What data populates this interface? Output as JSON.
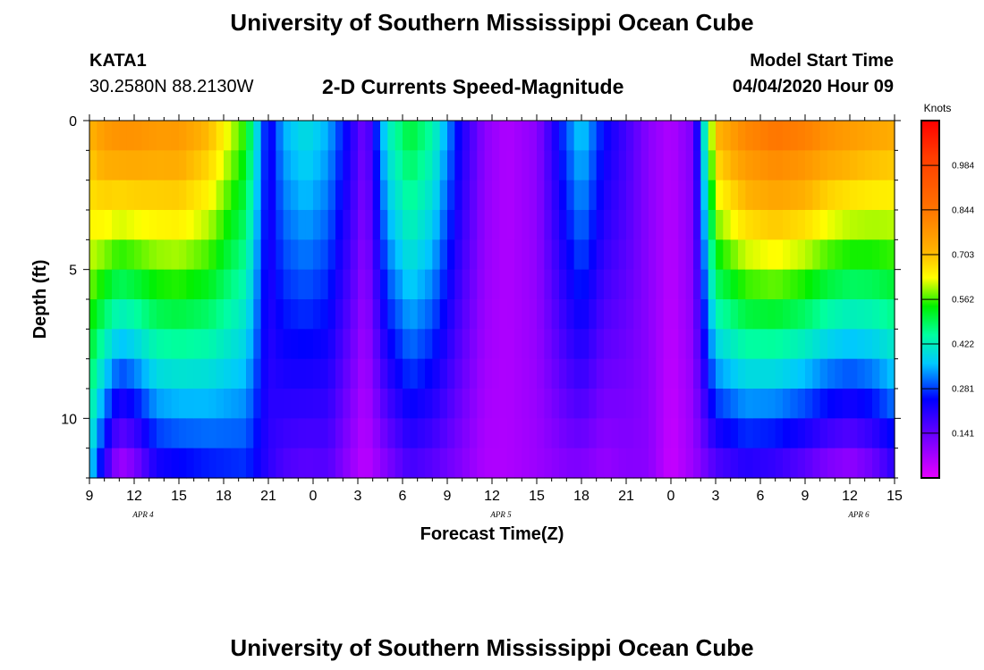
{
  "header": {
    "title": "University of Southern Mississippi Ocean Cube",
    "station": "KATA1",
    "coordinates": "30.2580N 88.2130W",
    "subtitle": "2-D Currents Speed-Magnitude",
    "model_start_label": "Model Start Time",
    "model_start_value": "04/04/2020 Hour 09"
  },
  "footer": {
    "title": "University of Southern Mississippi Ocean Cube"
  },
  "chart_data": {
    "type": "heatmap",
    "title": "2-D Currents Speed-Magnitude",
    "xlabel": "Forecast Time(Z)",
    "ylabel": "Depth (ft)",
    "x_tick_labels": [
      "9",
      "12",
      "15",
      "18",
      "21",
      "0",
      "3",
      "6",
      "9",
      "12",
      "15",
      "18",
      "21",
      "0",
      "3",
      "6",
      "9",
      "12",
      "15"
    ],
    "date_labels": [
      {
        "label": "APR 4",
        "at_hour": 12
      },
      {
        "label": "APR 5",
        "at_hour": 36
      },
      {
        "label": "APR 6",
        "at_hour": 60
      }
    ],
    "y_tick_labels": [
      "0",
      "5",
      "10"
    ],
    "ylim": [
      12,
      0
    ],
    "hours_range": [
      0,
      54
    ],
    "colorbar": {
      "unit": "Knots",
      "ticks": [
        "0.984",
        "0.844",
        "0.703",
        "0.562",
        "0.422",
        "0.281",
        "0.141"
      ],
      "range": [
        0,
        1.125
      ]
    },
    "time_keypoints": [
      {
        "h": 0,
        "surface": 0.72,
        "bottom": 0.38
      },
      {
        "h": 1,
        "surface": 0.78,
        "bottom": 0.18
      },
      {
        "h": 2,
        "surface": 0.8,
        "bottom": 0.04
      },
      {
        "h": 3,
        "surface": 0.8,
        "bottom": 0.08
      },
      {
        "h": 4.5,
        "surface": 0.78,
        "bottom": 0.2
      },
      {
        "h": 6,
        "surface": 0.78,
        "bottom": 0.22
      },
      {
        "h": 8,
        "surface": 0.72,
        "bottom": 0.24
      },
      {
        "h": 10.5,
        "surface": 0.55,
        "bottom": 0.26
      },
      {
        "h": 12,
        "surface": 0.22,
        "bottom": 0.2
      },
      {
        "h": 13,
        "surface": 0.35,
        "bottom": 0.16
      },
      {
        "h": 14.5,
        "surface": 0.4,
        "bottom": 0.14
      },
      {
        "h": 16,
        "surface": 0.35,
        "bottom": 0.15
      },
      {
        "h": 17.5,
        "surface": 0.22,
        "bottom": 0.08
      },
      {
        "h": 18.5,
        "surface": 0.12,
        "bottom": 0.04
      },
      {
        "h": 20,
        "surface": 0.42,
        "bottom": 0.1
      },
      {
        "h": 21.5,
        "surface": 0.52,
        "bottom": 0.16
      },
      {
        "h": 23,
        "surface": 0.45,
        "bottom": 0.14
      },
      {
        "h": 25,
        "surface": 0.22,
        "bottom": 0.1
      },
      {
        "h": 26.5,
        "surface": 0.1,
        "bottom": 0.06
      },
      {
        "h": 28,
        "surface": 0.06,
        "bottom": 0.06
      },
      {
        "h": 30,
        "surface": 0.1,
        "bottom": 0.08
      },
      {
        "h": 32,
        "surface": 0.3,
        "bottom": 0.1
      },
      {
        "h": 33,
        "surface": 0.38,
        "bottom": 0.1
      },
      {
        "h": 34.5,
        "surface": 0.25,
        "bottom": 0.08
      },
      {
        "h": 36,
        "surface": 0.18,
        "bottom": 0.1
      },
      {
        "h": 37.5,
        "surface": 0.1,
        "bottom": 0.1
      },
      {
        "h": 39,
        "surface": 0.06,
        "bottom": 0.03
      },
      {
        "h": 40.5,
        "surface": 0.12,
        "bottom": 0.08
      },
      {
        "h": 42,
        "surface": 0.72,
        "bottom": 0.14
      },
      {
        "h": 44,
        "surface": 0.82,
        "bottom": 0.18
      },
      {
        "h": 46,
        "surface": 0.86,
        "bottom": 0.16
      },
      {
        "h": 48,
        "surface": 0.84,
        "bottom": 0.12
      },
      {
        "h": 49.5,
        "surface": 0.8,
        "bottom": 0.08
      },
      {
        "h": 51,
        "surface": 0.78,
        "bottom": 0.06
      },
      {
        "h": 52.5,
        "surface": 0.76,
        "bottom": 0.1
      },
      {
        "h": 54,
        "surface": 0.74,
        "bottom": 0.18
      }
    ]
  }
}
